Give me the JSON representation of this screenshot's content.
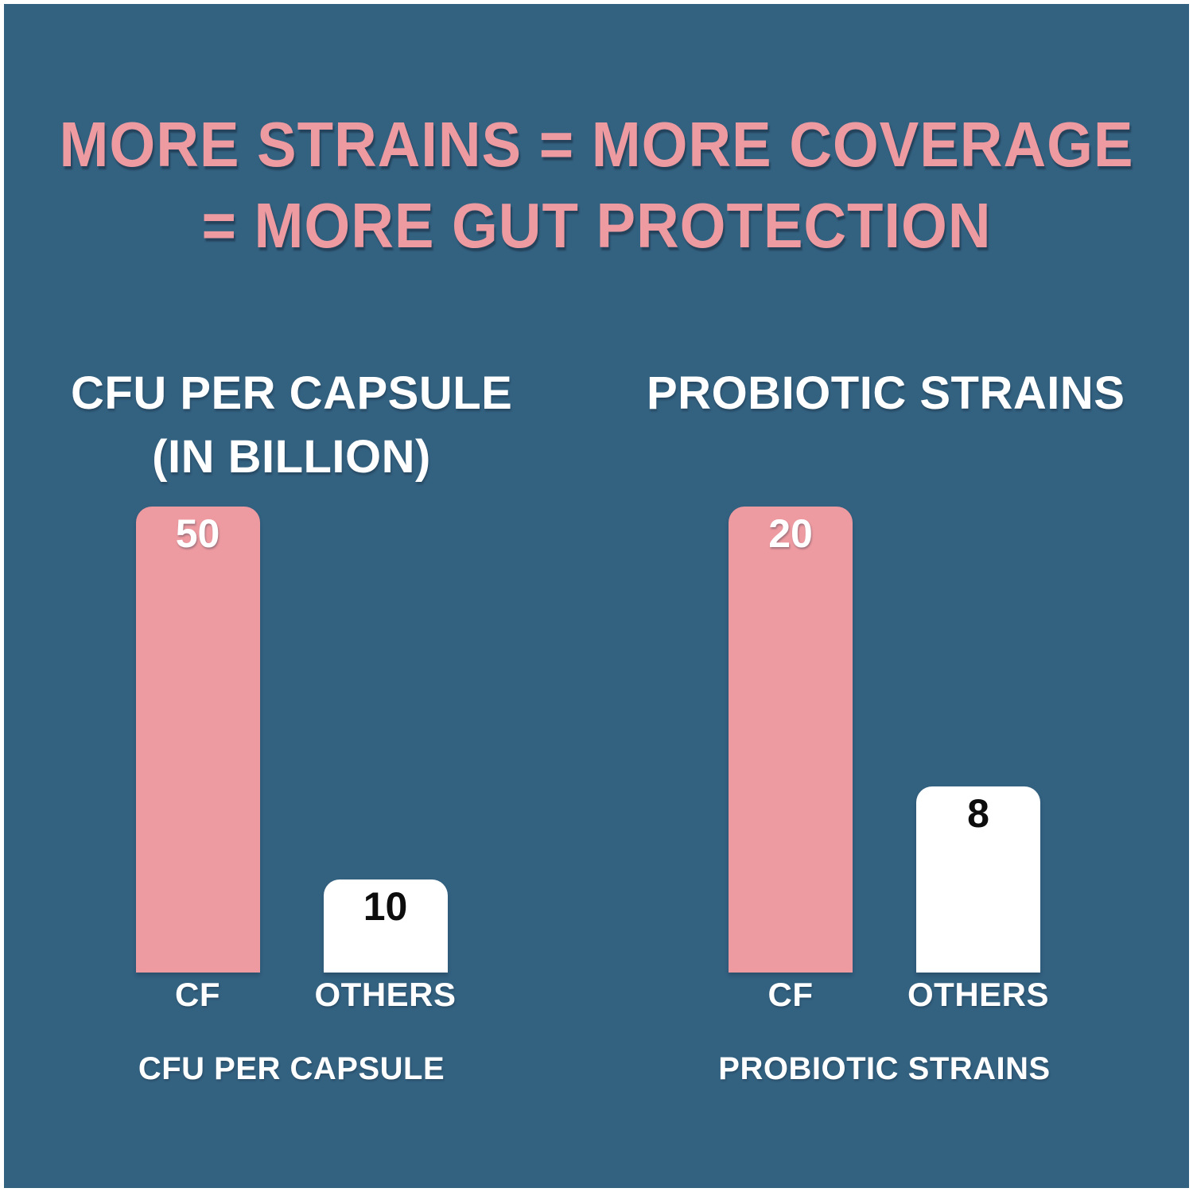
{
  "headline": {
    "line1": "MORE STRAINS = MORE COVERAGE",
    "line2": "= MORE GUT PROTECTION"
  },
  "colors": {
    "background": "#336180",
    "accent_pink": "#ED9AA0",
    "bar_white": "#FFFFFF",
    "text_white": "#FFFFFF",
    "value_dark": "#0D0D0D",
    "border_white": "#FFFFFF"
  },
  "chart_data": [
    {
      "type": "bar",
      "title": "CFU PER CAPSULE",
      "title_line2": "(IN BILLION)",
      "caption": "CFU PER CAPSULE",
      "categories": [
        "CF",
        "OTHERS"
      ],
      "values": [
        50,
        10
      ],
      "value_labels": [
        "50",
        "10"
      ],
      "bar_colors": [
        "#ED9AA0",
        "#FFFFFF"
      ],
      "ylim": [
        0,
        50
      ],
      "grid": false,
      "legend": "none"
    },
    {
      "type": "bar",
      "title": "PROBIOTIC STRAINS",
      "title_line2": "",
      "caption": "PROBIOTIC STRAINS",
      "categories": [
        "CF",
        "OTHERS"
      ],
      "values": [
        20,
        8
      ],
      "value_labels": [
        "20",
        "8"
      ],
      "bar_colors": [
        "#ED9AA0",
        "#FFFFFF"
      ],
      "ylim": [
        0,
        20
      ],
      "grid": false,
      "legend": "none"
    }
  ]
}
